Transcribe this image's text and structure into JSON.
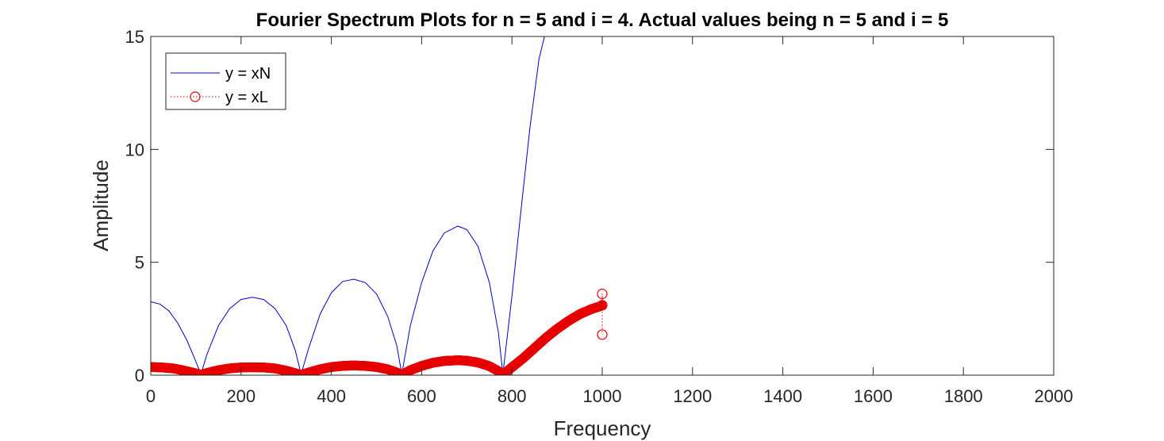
{
  "chart_data": {
    "type": "line",
    "title": "Fourier Spectrum Plots for n = 5 and i = 4. Actual values being n = 5 and i = 5",
    "xlabel": "Frequency",
    "ylabel": "Amplitude",
    "xlim": [
      0,
      2000
    ],
    "ylim": [
      0,
      15
    ],
    "xticks": [
      "0",
      "200",
      "400",
      "600",
      "800",
      "1000",
      "1200",
      "1400",
      "1600",
      "1800",
      "2000"
    ],
    "yticks": [
      "0",
      "5",
      "10",
      "15"
    ],
    "legend_position": "top-left",
    "grid": false,
    "series": [
      {
        "name": "y = xN",
        "color": "#0000cc",
        "style": "solid",
        "points": [
          [
            0,
            3.25
          ],
          [
            20,
            3.15
          ],
          [
            40,
            2.85
          ],
          [
            60,
            2.3
          ],
          [
            80,
            1.55
          ],
          [
            100,
            0.6
          ],
          [
            111,
            0.05
          ],
          [
            125,
            0.95
          ],
          [
            150,
            2.2
          ],
          [
            175,
            2.95
          ],
          [
            200,
            3.35
          ],
          [
            225,
            3.45
          ],
          [
            250,
            3.35
          ],
          [
            275,
            2.95
          ],
          [
            300,
            2.2
          ],
          [
            320,
            1.1
          ],
          [
            333,
            0.05
          ],
          [
            350,
            1.2
          ],
          [
            375,
            2.7
          ],
          [
            400,
            3.65
          ],
          [
            425,
            4.15
          ],
          [
            450,
            4.25
          ],
          [
            475,
            4.1
          ],
          [
            500,
            3.6
          ],
          [
            525,
            2.6
          ],
          [
            545,
            1.3
          ],
          [
            556,
            0.05
          ],
          [
            575,
            2.2
          ],
          [
            600,
            4.1
          ],
          [
            625,
            5.5
          ],
          [
            650,
            6.3
          ],
          [
            680,
            6.6
          ],
          [
            700,
            6.45
          ],
          [
            725,
            5.7
          ],
          [
            750,
            4.1
          ],
          [
            770,
            1.9
          ],
          [
            780,
            0.05
          ],
          [
            800,
            3.5
          ],
          [
            820,
            7.3
          ],
          [
            840,
            11.0
          ],
          [
            860,
            14.0
          ],
          [
            872,
            15.0
          ]
        ]
      },
      {
        "name": "y = xL",
        "color": "#e60000",
        "style": "dotted-circles",
        "points": [
          [
            0,
            0.36
          ],
          [
            25,
            0.34
          ],
          [
            50,
            0.3
          ],
          [
            75,
            0.2
          ],
          [
            100,
            0.08
          ],
          [
            111,
            0.02
          ],
          [
            125,
            0.1
          ],
          [
            150,
            0.22
          ],
          [
            175,
            0.3
          ],
          [
            200,
            0.34
          ],
          [
            225,
            0.35
          ],
          [
            250,
            0.34
          ],
          [
            275,
            0.3
          ],
          [
            300,
            0.2
          ],
          [
            320,
            0.09
          ],
          [
            333,
            0.02
          ],
          [
            350,
            0.12
          ],
          [
            375,
            0.26
          ],
          [
            400,
            0.36
          ],
          [
            425,
            0.41
          ],
          [
            450,
            0.43
          ],
          [
            475,
            0.41
          ],
          [
            500,
            0.36
          ],
          [
            525,
            0.26
          ],
          [
            545,
            0.12
          ],
          [
            556,
            0.02
          ],
          [
            575,
            0.22
          ],
          [
            600,
            0.41
          ],
          [
            625,
            0.55
          ],
          [
            650,
            0.63
          ],
          [
            680,
            0.66
          ],
          [
            700,
            0.64
          ],
          [
            725,
            0.56
          ],
          [
            750,
            0.4
          ],
          [
            770,
            0.18
          ],
          [
            780,
            0.02
          ],
          [
            800,
            0.35
          ],
          [
            825,
            0.75
          ],
          [
            850,
            1.2
          ],
          [
            875,
            1.65
          ],
          [
            900,
            2.05
          ],
          [
            925,
            2.4
          ],
          [
            950,
            2.7
          ],
          [
            975,
            2.92
          ],
          [
            995,
            3.05
          ],
          [
            1000,
            3.1
          ],
          [
            1000,
            3.6
          ],
          [
            1000,
            1.8
          ]
        ]
      }
    ]
  }
}
